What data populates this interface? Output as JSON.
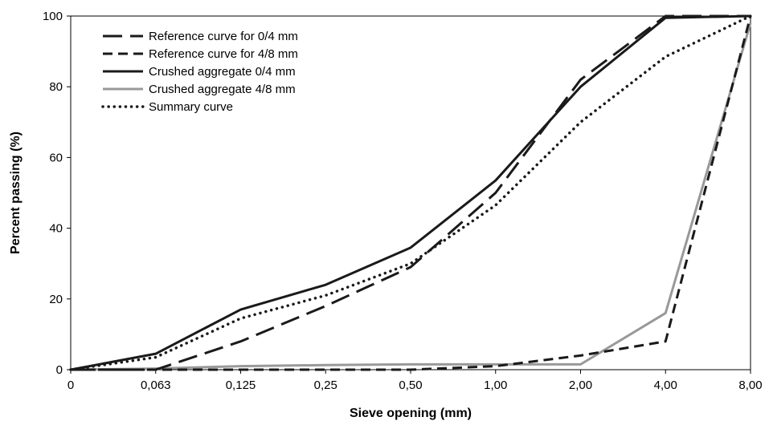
{
  "chart_data": {
    "type": "line",
    "title": "",
    "xlabel": "Sieve opening (mm)",
    "ylabel": "Percent passing (%)",
    "categories": [
      "0",
      "0,063",
      "0,125",
      "0,25",
      "0,50",
      "1,00",
      "2,00",
      "4,00",
      "8,00"
    ],
    "yticks": [
      "0",
      "20",
      "40",
      "60",
      "80",
      "100"
    ],
    "ylim": [
      0,
      100
    ],
    "grid": false,
    "legend_position": "top-left",
    "series": [
      {
        "name": "Reference curve for 0/4 mm",
        "style": "long-dash",
        "color": "#1a1a1a",
        "values": [
          0,
          0,
          8,
          18,
          29,
          50,
          82,
          100,
          100
        ]
      },
      {
        "name": "Reference curve for 4/8 mm",
        "style": "short-dash",
        "color": "#1a1a1a",
        "values": [
          0,
          0,
          0,
          0,
          0,
          1,
          4,
          8,
          100
        ]
      },
      {
        "name": "Crushed aggregate 0/4 mm",
        "style": "solid",
        "color": "#1a1a1a",
        "values": [
          0,
          4.5,
          17,
          24,
          34.5,
          53.5,
          80,
          99.5,
          100
        ]
      },
      {
        "name": "Crushed aggregate 4/8 mm",
        "style": "solid",
        "color": "#999999",
        "values": [
          0,
          0.3,
          1,
          1.3,
          1.5,
          1.5,
          1.5,
          16,
          98
        ]
      },
      {
        "name": "Summary curve",
        "style": "dotted",
        "color": "#1a1a1a",
        "values": [
          0,
          3.5,
          14.5,
          21,
          30,
          46.5,
          70,
          88.5,
          100
        ]
      }
    ]
  }
}
